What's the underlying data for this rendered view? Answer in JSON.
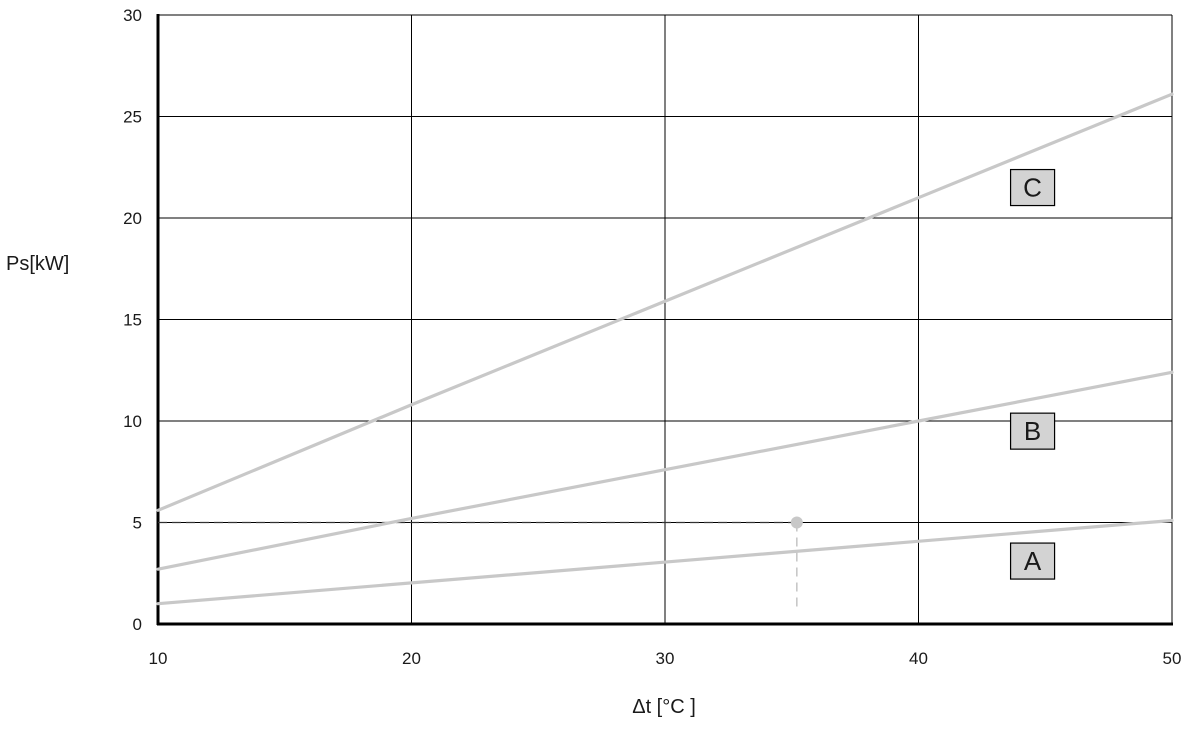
{
  "chart_data": {
    "type": "line",
    "xlabel": "Δt [°C ]",
    "ylabel": "Ps[kW]",
    "xlim": [
      10,
      50
    ],
    "ylim": [
      0,
      30
    ],
    "x_ticks": [
      10,
      20,
      30,
      40,
      50
    ],
    "y_ticks": [
      0,
      5,
      10,
      15,
      20,
      25,
      30
    ],
    "grid": true,
    "series": [
      {
        "name": "A",
        "x": [
          10,
          50
        ],
        "y": [
          1.0,
          5.1
        ]
      },
      {
        "name": "B",
        "x": [
          10,
          20,
          30,
          40,
          50
        ],
        "y": [
          2.7,
          5.2,
          7.6,
          10.0,
          12.4
        ]
      },
      {
        "name": "C",
        "x": [
          10,
          20,
          30,
          40,
          50
        ],
        "y": [
          5.6,
          10.8,
          15.9,
          21.0,
          26.1
        ]
      }
    ],
    "series_label_positions": [
      {
        "name": "A",
        "x": 44.5,
        "y": 3.1
      },
      {
        "name": "B",
        "x": 44.5,
        "y": 9.5
      },
      {
        "name": "C",
        "x": 44.5,
        "y": 21.5
      }
    ],
    "annotation": {
      "point": {
        "x": 35.2,
        "y": 5.0
      },
      "guide_x_from": 10,
      "guide_y_to": 0.6
    },
    "colors": {
      "series_line": "#c8c8c8",
      "grid": "#000000",
      "label_box_fill": "#d3d3d3",
      "label_box_stroke": "#000000",
      "annotation": "#c8c8c8"
    }
  }
}
